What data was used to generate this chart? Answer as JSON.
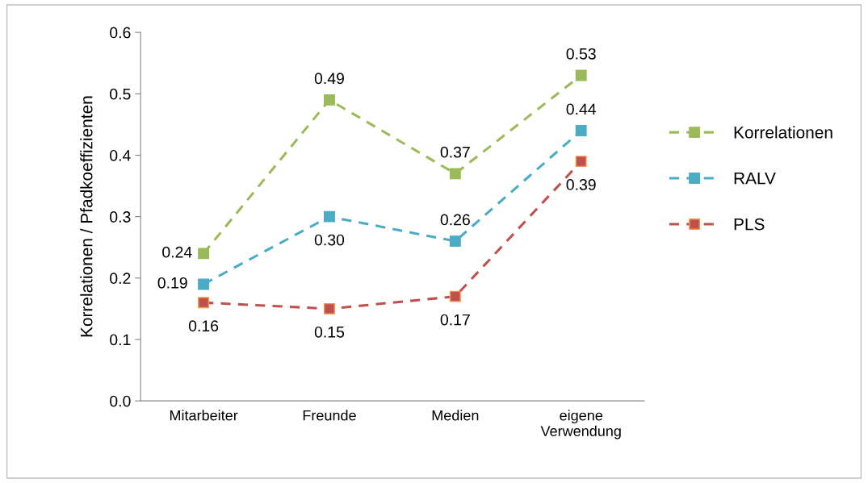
{
  "chart_data": {
    "type": "line",
    "ylabel": "Korrelationen / Pfadkoeffizienten",
    "categories": [
      "Mitarbeiter",
      "Freunde",
      "Medien",
      "eigene\nVerwendung"
    ],
    "series": [
      {
        "name": "Korrelationen",
        "color": "#9bbb59",
        "values": [
          0.24,
          0.49,
          0.37,
          0.53
        ],
        "value_labels": [
          "0.24",
          "0.49",
          "0.37",
          "0.53"
        ]
      },
      {
        "name": "RALV",
        "color": "#4bacc6",
        "values": [
          0.19,
          0.3,
          0.26,
          0.44
        ],
        "value_labels": [
          "0.19",
          "0.30",
          "0.26",
          "0.44"
        ]
      },
      {
        "name": "PLS",
        "color": "#c0504d",
        "values": [
          0.16,
          0.15,
          0.17,
          0.39
        ],
        "value_labels": [
          "0.16",
          "0.15",
          "0.17",
          "0.39"
        ]
      }
    ],
    "ylim": [
      0,
      0.6
    ],
    "yticks": [
      {
        "value": 0,
        "label": "0.0"
      },
      {
        "value": 0.1,
        "label": "0.1"
      },
      {
        "value": 0.2,
        "label": "0.2"
      },
      {
        "value": 0.3,
        "label": "0.3"
      },
      {
        "value": 0.4,
        "label": "0.4"
      },
      {
        "value": 0.5,
        "label": "0.5"
      },
      {
        "value": 0.6,
        "label": "0.6"
      }
    ],
    "marker": "square",
    "line_style": "dashed",
    "legend": "right",
    "grid": false
  }
}
